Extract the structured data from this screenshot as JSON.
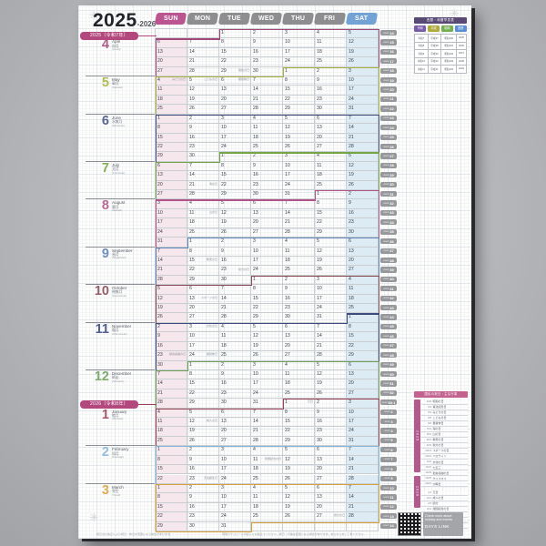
{
  "colors": {
    "page_background": "#b4b5b9",
    "sunday_header": "#bb5590",
    "weekday_header": "#8e8e90",
    "saturday_header": "#73a2d4",
    "sunday_column": "#f6e7ed",
    "saturday_column": "#dcebf4",
    "era_badge": "#b3487f",
    "week_tag": "#97989b",
    "ref_title_bar": "#584a74",
    "events_title_bar": "#c2638f"
  },
  "poster": {
    "title": {
      "year": "2025",
      "range": "-2026"
    },
    "era_badges": [
      {
        "label": "2025〔令和7年〕"
      },
      {
        "label": "2026〔令和8年〕"
      }
    ],
    "day_headers": [
      {
        "label": "SUN",
        "color": "#bb5590"
      },
      {
        "label": "MON",
        "color": "#8e8e90"
      },
      {
        "label": "TUE",
        "color": "#8e8e90"
      },
      {
        "label": "WED",
        "color": "#8e8e90"
      },
      {
        "label": "THU",
        "color": "#8e8e90"
      },
      {
        "label": "FRI",
        "color": "#8e8e90"
      },
      {
        "label": "SAT",
        "color": "#73a2d4"
      }
    ],
    "months": [
      {
        "num": "4",
        "en": "April",
        "jp": "卯月",
        "romaji": "(Uzuki)",
        "color": "#a3487a",
        "label_row": 1,
        "s_row": 0,
        "s_col": 2,
        "e_row": 4,
        "e_col": 3
      },
      {
        "num": "5",
        "en": "May",
        "jp": "皐月",
        "romaji": "(Satsuki)",
        "color": "#a9b23f",
        "label_row": 5,
        "s_row": 4,
        "s_col": 4,
        "e_row": 8,
        "e_col": 6
      },
      {
        "num": "6",
        "en": "June",
        "jp": "水無月",
        "romaji": "(Minazuki)",
        "color": "#435080",
        "label_row": 9,
        "s_row": 9,
        "s_col": 0,
        "e_row": 13,
        "e_col": 1
      },
      {
        "num": "7",
        "en": "July",
        "jp": "文月",
        "romaji": "(Fumizuki)",
        "color": "#74a647",
        "label_row": 14,
        "s_row": 13,
        "s_col": 2,
        "e_row": 17,
        "e_col": 4
      },
      {
        "num": "8",
        "en": "August",
        "jp": "葉月",
        "romaji": "(Hazuki)",
        "color": "#b05489",
        "label_row": 18,
        "s_row": 17,
        "s_col": 5,
        "e_row": 22,
        "e_col": 0
      },
      {
        "num": "9",
        "en": "September",
        "jp": "長月",
        "romaji": "(Nagatsuki)",
        "color": "#5c82b8",
        "label_row": 23,
        "s_row": 22,
        "s_col": 1,
        "e_row": 26,
        "e_col": 2
      },
      {
        "num": "10",
        "en": "October",
        "jp": "神無月",
        "romaji": "(Kannazuki)",
        "color": "#8a4a54",
        "label_row": 27,
        "s_row": 26,
        "s_col": 3,
        "e_row": 30,
        "e_col": 5
      },
      {
        "num": "11",
        "en": "November",
        "jp": "霜月",
        "romaji": "(Shimotsuki)",
        "color": "#3c4a80",
        "label_row": 31,
        "s_row": 30,
        "s_col": 6,
        "e_row": 35,
        "e_col": 0
      },
      {
        "num": "12",
        "en": "December",
        "jp": "師走",
        "romaji": "(Shiwasu)",
        "color": "#6fa05a",
        "label_row": 36,
        "s_row": 35,
        "s_col": 1,
        "e_row": 39,
        "e_col": 3
      },
      {
        "num": "1",
        "en": "January",
        "jp": "睦月",
        "romaji": "(Mutsuki)",
        "color": "#9c4152",
        "label_row": 40,
        "s_row": 39,
        "s_col": 4,
        "e_row": 43,
        "e_col": 6
      },
      {
        "num": "2",
        "en": "February",
        "jp": "如月",
        "romaji": "(Kisaragi)",
        "color": "#85b5d6",
        "label_row": 44,
        "s_row": 44,
        "s_col": 0,
        "e_row": 47,
        "e_col": 6
      },
      {
        "num": "3",
        "en": "March",
        "jp": "弥生",
        "romaji": "(Yayoi)",
        "color": "#d9a23f",
        "label_row": 48,
        "s_row": 48,
        "s_col": 0,
        "e_row": 52,
        "e_col": 2
      }
    ],
    "weeks": [
      {
        "tag": "14",
        "days": [
          "",
          "",
          1,
          2,
          3,
          4,
          5
        ]
      },
      {
        "tag": "15",
        "days": [
          6,
          7,
          8,
          9,
          10,
          11,
          12
        ]
      },
      {
        "tag": "16",
        "days": [
          13,
          14,
          15,
          16,
          17,
          18,
          19
        ]
      },
      {
        "tag": "17",
        "days": [
          20,
          21,
          22,
          23,
          24,
          25,
          26
        ]
      },
      {
        "tag": "18",
        "days": [
          27,
          28,
          29,
          30,
          1,
          2,
          3
        ]
      },
      {
        "tag": "19",
        "days": [
          4,
          5,
          6,
          7,
          8,
          9,
          10
        ]
      },
      {
        "tag": "20",
        "days": [
          11,
          12,
          13,
          14,
          15,
          16,
          17
        ]
      },
      {
        "tag": "21",
        "days": [
          18,
          19,
          20,
          21,
          22,
          23,
          24
        ]
      },
      {
        "tag": "22",
        "days": [
          25,
          26,
          27,
          28,
          29,
          30,
          31
        ]
      },
      {
        "tag": "23",
        "days": [
          1,
          2,
          3,
          4,
          5,
          6,
          7
        ]
      },
      {
        "tag": "24",
        "days": [
          8,
          9,
          10,
          11,
          12,
          13,
          14
        ]
      },
      {
        "tag": "25",
        "days": [
          15,
          16,
          17,
          18,
          19,
          20,
          21
        ]
      },
      {
        "tag": "26",
        "days": [
          22,
          23,
          24,
          25,
          26,
          27,
          28
        ]
      },
      {
        "tag": "27",
        "days": [
          29,
          30,
          1,
          2,
          3,
          4,
          5
        ]
      },
      {
        "tag": "28",
        "days": [
          6,
          7,
          8,
          9,
          10,
          11,
          12
        ]
      },
      {
        "tag": "29",
        "days": [
          13,
          14,
          15,
          16,
          17,
          18,
          19
        ]
      },
      {
        "tag": "30",
        "days": [
          20,
          21,
          22,
          23,
          24,
          25,
          26
        ]
      },
      {
        "tag": "31",
        "days": [
          27,
          28,
          29,
          30,
          31,
          1,
          2
        ]
      },
      {
        "tag": "32",
        "days": [
          3,
          4,
          5,
          6,
          7,
          8,
          9
        ]
      },
      {
        "tag": "33",
        "days": [
          10,
          11,
          12,
          13,
          14,
          15,
          16
        ]
      },
      {
        "tag": "34",
        "days": [
          17,
          18,
          19,
          20,
          21,
          22,
          23
        ]
      },
      {
        "tag": "35",
        "days": [
          24,
          25,
          26,
          27,
          28,
          29,
          30
        ]
      },
      {
        "tag": "36",
        "days": [
          31,
          1,
          2,
          3,
          4,
          5,
          6
        ]
      },
      {
        "tag": "37",
        "days": [
          7,
          8,
          9,
          10,
          11,
          12,
          13
        ]
      },
      {
        "tag": "38",
        "days": [
          14,
          15,
          16,
          17,
          18,
          19,
          20
        ]
      },
      {
        "tag": "39",
        "days": [
          21,
          22,
          23,
          24,
          25,
          26,
          27
        ]
      },
      {
        "tag": "40",
        "days": [
          28,
          29,
          30,
          1,
          2,
          3,
          4
        ]
      },
      {
        "tag": "41",
        "days": [
          5,
          6,
          7,
          8,
          9,
          10,
          11
        ]
      },
      {
        "tag": "42",
        "days": [
          12,
          13,
          14,
          15,
          16,
          17,
          18
        ]
      },
      {
        "tag": "43",
        "days": [
          19,
          20,
          21,
          22,
          23,
          24,
          25
        ]
      },
      {
        "tag": "44",
        "days": [
          26,
          27,
          28,
          29,
          30,
          31,
          1
        ]
      },
      {
        "tag": "45",
        "days": [
          2,
          3,
          4,
          5,
          6,
          7,
          8
        ]
      },
      {
        "tag": "46",
        "days": [
          9,
          10,
          11,
          12,
          13,
          14,
          15
        ]
      },
      {
        "tag": "47",
        "days": [
          16,
          17,
          18,
          19,
          20,
          21,
          22
        ]
      },
      {
        "tag": "48",
        "days": [
          23,
          24,
          25,
          26,
          27,
          28,
          29
        ]
      },
      {
        "tag": "49",
        "days": [
          30,
          1,
          2,
          3,
          4,
          5,
          6
        ]
      },
      {
        "tag": "50",
        "days": [
          7,
          8,
          9,
          10,
          11,
          12,
          13
        ]
      },
      {
        "tag": "51",
        "days": [
          14,
          15,
          16,
          17,
          18,
          19,
          20
        ]
      },
      {
        "tag": "52",
        "days": [
          21,
          22,
          23,
          24,
          25,
          26,
          27
        ]
      },
      {
        "tag": "53·1",
        "days": [
          28,
          29,
          30,
          31,
          1,
          2,
          3
        ]
      },
      {
        "tag": "2",
        "days": [
          4,
          5,
          6,
          7,
          8,
          9,
          10
        ]
      },
      {
        "tag": "3",
        "days": [
          11,
          12,
          13,
          14,
          15,
          16,
          17
        ]
      },
      {
        "tag": "4",
        "days": [
          18,
          19,
          20,
          21,
          22,
          23,
          24
        ]
      },
      {
        "tag": "5",
        "days": [
          25,
          26,
          27,
          28,
          29,
          30,
          31
        ]
      },
      {
        "tag": "6",
        "days": [
          1,
          2,
          3,
          4,
          5,
          6,
          7
        ]
      },
      {
        "tag": "7",
        "days": [
          8,
          9,
          10,
          11,
          12,
          13,
          14
        ]
      },
      {
        "tag": "8",
        "days": [
          15,
          16,
          17,
          18,
          19,
          20,
          21
        ]
      },
      {
        "tag": "9",
        "days": [
          22,
          23,
          24,
          25,
          26,
          27,
          28
        ]
      },
      {
        "tag": "10",
        "days": [
          1,
          2,
          3,
          4,
          5,
          6,
          7
        ]
      },
      {
        "tag": "11",
        "days": [
          8,
          9,
          10,
          11,
          12,
          13,
          14
        ]
      },
      {
        "tag": "12",
        "days": [
          15,
          16,
          17,
          18,
          19,
          20,
          21
        ]
      },
      {
        "tag": "13",
        "days": [
          22,
          23,
          24,
          25,
          26,
          27,
          28
        ]
      },
      {
        "tag": "14",
        "days": [
          29,
          30,
          31,
          "",
          "",
          "",
          ""
        ]
      }
    ],
    "holidays": [
      {
        "row": 4,
        "col": 2,
        "name": "昭和の日"
      },
      {
        "row": 5,
        "col": 0,
        "name": "みどりの日"
      },
      {
        "row": 5,
        "col": 1,
        "name": "こどもの日"
      },
      {
        "row": 5,
        "col": 2,
        "name": "振替休日"
      },
      {
        "row": 16,
        "col": 1,
        "name": "海の日"
      },
      {
        "row": 19,
        "col": 1,
        "name": "山の日"
      },
      {
        "row": 24,
        "col": 1,
        "name": "敬老の日"
      },
      {
        "row": 25,
        "col": 2,
        "name": "秋分の日"
      },
      {
        "row": 28,
        "col": 1,
        "name": "スポーツの日"
      },
      {
        "row": 31,
        "col": 1,
        "name": "文化の日"
      },
      {
        "row": 34,
        "col": 0,
        "name": "勤労感謝の日"
      },
      {
        "row": 34,
        "col": 1,
        "name": "振替休日"
      },
      {
        "row": 39,
        "col": 4,
        "name": "元日"
      },
      {
        "row": 41,
        "col": 1,
        "name": "成人の日"
      },
      {
        "row": 45,
        "col": 3,
        "name": "建国記念の日"
      },
      {
        "row": 47,
        "col": 1,
        "name": "天皇誕生日"
      },
      {
        "row": 51,
        "col": 5,
        "name": "春分の日"
      }
    ],
    "ref_table": {
      "title": "西暦・和暦早見表",
      "tags": [
        {
          "label": "令和",
          "color": "#7a5ba8"
        },
        {
          "label": "平成",
          "color": "#b0ab3e"
        },
        {
          "label": "昭和",
          "color": "#74ad52"
        },
        {
          "label": "西暦",
          "color": "#5a8fd4"
        }
      ],
      "rows": [
        [
          "令和7",
          "平成37",
          "昭和100",
          "2025"
        ],
        [
          "令和8",
          "平成38",
          "昭和101",
          "2026"
        ],
        [
          "令和9",
          "平成39",
          "昭和102",
          "2027"
        ],
        [
          "令和10",
          "平成40",
          "昭和103",
          "2028"
        ],
        [
          "令和11",
          "平成41",
          "昭和104",
          "2029"
        ]
      ]
    },
    "events": {
      "title": "国民の祝日・主な行事",
      "sections": [
        {
          "year": "2025",
          "items": [
            {
              "date": "4/29",
              "name": "昭和の日"
            },
            {
              "date": "5/3",
              "name": "憲法記念日"
            },
            {
              "date": "5/4",
              "name": "みどりの日"
            },
            {
              "date": "5/5",
              "name": "こどもの日"
            },
            {
              "date": "5/6",
              "name": "振替休日"
            },
            {
              "date": "7/21",
              "name": "海の日"
            },
            {
              "date": "8/11",
              "name": "山の日"
            },
            {
              "date": "9/15",
              "name": "敬老の日"
            },
            {
              "date": "9/23",
              "name": "秋分の日"
            },
            {
              "date": "10/13",
              "name": "スポーツの日"
            },
            {
              "date": "10/31",
              "name": "ハロウィン"
            },
            {
              "date": "11/3",
              "name": "文化の日"
            },
            {
              "date": "11/15",
              "name": "七五三"
            },
            {
              "date": "11/23",
              "name": "勤労感謝の日"
            },
            {
              "date": "12/25",
              "name": "クリスマス"
            },
            {
              "date": "12/31",
              "name": "大晦日"
            }
          ]
        },
        {
          "year": "2026",
          "items": [
            {
              "date": "1/1",
              "name": "元日"
            },
            {
              "date": "1/12",
              "name": "成人の日"
            },
            {
              "date": "2/3",
              "name": "節分"
            },
            {
              "date": "2/11",
              "name": "建国記念の日"
            },
            {
              "date": "2/14",
              "name": "バレンタインデー"
            },
            {
              "date": "2/23",
              "name": "天皇誕生日"
            },
            {
              "date": "3/20",
              "name": "春分の日"
            }
          ]
        }
      ]
    },
    "qr": {
      "caption": "Check more about holiday and events",
      "brand": "DAYS LINK"
    },
    "footnotes": {
      "left": "祝日法の改正により祝日・休日が変更になる場合があります。",
      "right": "年間スケジュールの記入にお役立てください。祝日・行事は変更になる場合があります。あらかじめご了承ください。"
    }
  }
}
